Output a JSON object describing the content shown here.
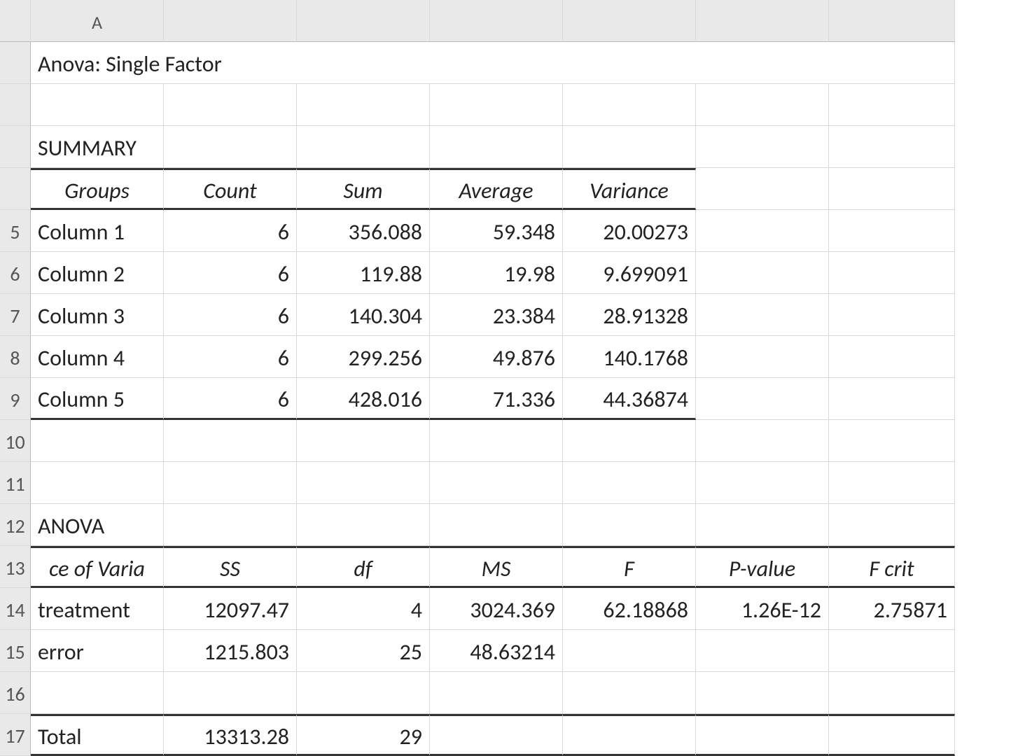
{
  "colhead": "A",
  "rows": {
    "r5": "5",
    "r6": "6",
    "r7": "7",
    "r8": "8",
    "r9": "9",
    "r10": "10",
    "r11": "11",
    "r12": "12",
    "r13": "13",
    "r14": "14",
    "r15": "15",
    "r16": "16",
    "r17": "17"
  },
  "title": "Anova: Single Factor",
  "summary": {
    "label": "SUMMARY",
    "headers": {
      "groups": "Groups",
      "count": "Count",
      "sum": "Sum",
      "average": "Average",
      "variance": "Variance"
    },
    "rows": [
      {
        "group": "Column 1",
        "count": "6",
        "sum": "356.088",
        "avg": "59.348",
        "var": "20.00273"
      },
      {
        "group": "Column 2",
        "count": "6",
        "sum": "119.88",
        "avg": "19.98",
        "var": "9.699091"
      },
      {
        "group": "Column 3",
        "count": "6",
        "sum": "140.304",
        "avg": "23.384",
        "var": "28.91328"
      },
      {
        "group": "Column 4",
        "count": "6",
        "sum": "299.256",
        "avg": "49.876",
        "var": "140.1768"
      },
      {
        "group": "Column 5",
        "count": "6",
        "sum": "428.016",
        "avg": "71.336",
        "var": "44.36874"
      }
    ]
  },
  "anova": {
    "label": "ANOVA",
    "headers": {
      "src": "ce of Varia",
      "ss": "SS",
      "df": "df",
      "ms": "MS",
      "f": "F",
      "p": "P-value",
      "fcrit": "F crit"
    },
    "rows": [
      {
        "src": "treatment",
        "ss": "12097.47",
        "df": "4",
        "ms": "3024.369",
        "f": "62.18868",
        "p": "1.26E-12",
        "fcrit": "2.75871"
      },
      {
        "src": "error",
        "ss": "1215.803",
        "df": "25",
        "ms": "48.63214",
        "f": "",
        "p": "",
        "fcrit": ""
      }
    ],
    "total": {
      "src": "Total",
      "ss": "13313.28",
      "df": "29"
    }
  },
  "style": {
    "grid_line": "#d8d8d8",
    "section_line": "#333333",
    "bg": "#ffffff",
    "header_bg": "#e9e9e9",
    "text": "#222222",
    "font_size_pt": 24
  }
}
